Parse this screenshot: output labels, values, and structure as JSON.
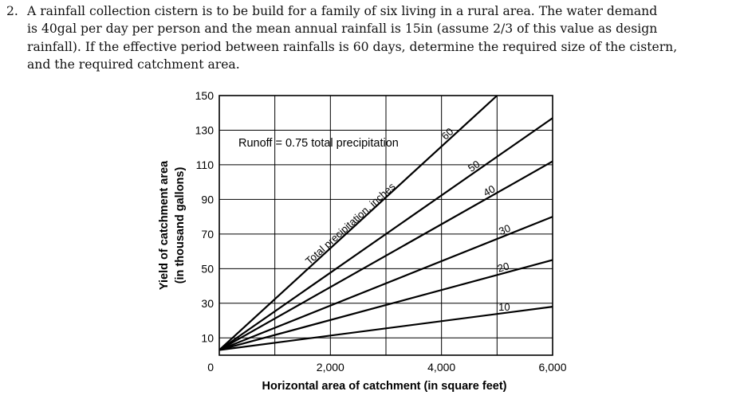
{
  "problem": {
    "number": "2.",
    "line1": "A rainfall collection cistern is to be build for a family of six living in a rural area. The water demand",
    "line2": "is 40gal per day per person and the mean annual rainfall is 15in (assume 2/3 of this value as design",
    "line3": "rainfall). If the effective period between rainfalls is 60 days, determine the required size of the cistern,",
    "line4": "and the required catchment area."
  },
  "chart_data": {
    "type": "line",
    "xlabel": "Horizontal area of catchment (in square feet)",
    "ylabel_line1": "Yield of catchment area",
    "ylabel_line2": "(in thousand gallons)",
    "x_ticks": [
      "2,000",
      "4,000",
      "6,000"
    ],
    "y_ticks": [
      "0",
      "10",
      "30",
      "50",
      "70",
      "90",
      "110",
      "130",
      "150"
    ],
    "xlim": [
      0,
      6000
    ],
    "ylim": [
      0,
      150
    ],
    "grid": true,
    "annotation": "Runoff = 0.75 total precipitation",
    "diagonal_label": "Total precipitation, inches",
    "series": [
      {
        "name": "10",
        "x": [
          0,
          6000
        ],
        "y": [
          3,
          28
        ]
      },
      {
        "name": "20",
        "x": [
          0,
          6000
        ],
        "y": [
          3,
          55
        ]
      },
      {
        "name": "30",
        "x": [
          0,
          6000
        ],
        "y": [
          3,
          80
        ]
      },
      {
        "name": "40",
        "x": [
          0,
          6000
        ],
        "y": [
          3,
          112
        ]
      },
      {
        "name": "50",
        "x": [
          0,
          6000
        ],
        "y": [
          3,
          137
        ]
      },
      {
        "name": "60",
        "x": [
          0,
          5000
        ],
        "y": [
          3,
          150
        ]
      }
    ]
  }
}
